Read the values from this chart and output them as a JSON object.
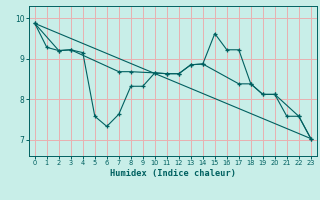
{
  "xlabel": "Humidex (Indice chaleur)",
  "xlim": [
    -0.5,
    23.5
  ],
  "ylim": [
    6.6,
    10.3
  ],
  "yticks": [
    7,
    8,
    9,
    10
  ],
  "xticks": [
    0,
    1,
    2,
    3,
    4,
    5,
    6,
    7,
    8,
    9,
    10,
    11,
    12,
    13,
    14,
    15,
    16,
    17,
    18,
    19,
    20,
    21,
    22,
    23
  ],
  "background_color": "#c8eee8",
  "grid_color": "#e8b0b0",
  "line_color": "#006060",
  "line1_x": [
    0,
    1,
    2,
    3,
    4,
    5,
    6,
    7,
    8,
    9,
    10,
    11,
    12,
    13,
    14,
    15,
    16,
    17,
    18,
    19,
    20,
    21,
    22,
    23
  ],
  "line1_y": [
    9.87,
    9.28,
    9.2,
    9.22,
    9.15,
    7.58,
    7.33,
    7.63,
    8.32,
    8.32,
    8.65,
    8.63,
    8.63,
    8.85,
    8.87,
    9.62,
    9.22,
    9.22,
    8.38,
    8.12,
    8.12,
    7.58,
    7.58,
    7.03
  ],
  "line2_x": [
    0,
    2,
    3,
    7,
    8,
    10,
    11,
    12,
    13,
    14,
    17,
    18,
    19,
    20,
    22,
    23
  ],
  "line2_y": [
    9.87,
    9.2,
    9.22,
    8.68,
    8.68,
    8.65,
    8.63,
    8.63,
    8.85,
    8.87,
    8.38,
    8.38,
    8.12,
    8.12,
    7.58,
    7.03
  ],
  "line3_x": [
    0,
    23
  ],
  "line3_y": [
    9.87,
    7.03
  ]
}
